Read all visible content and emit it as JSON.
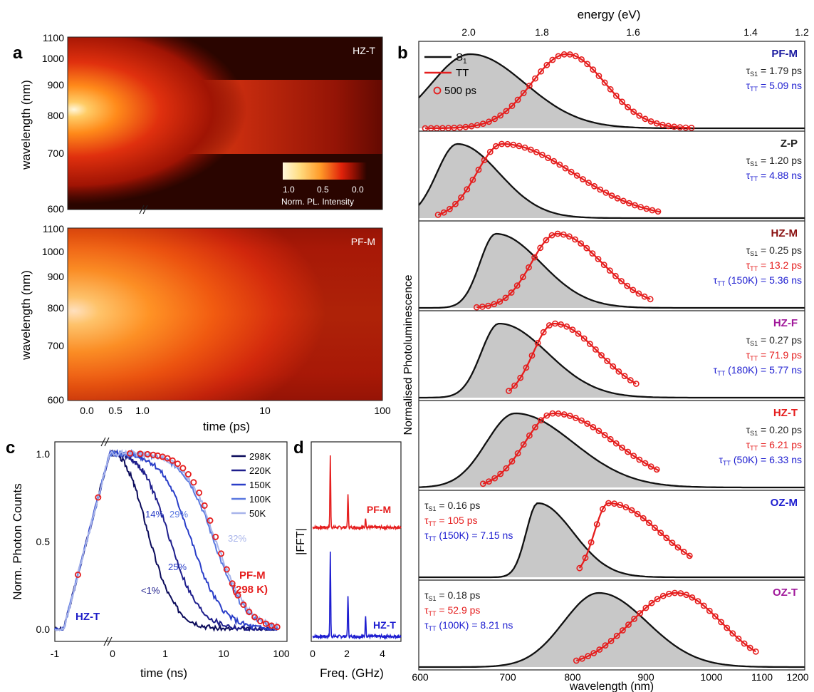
{
  "panels": {
    "a": {
      "label": "a",
      "ylabel": "wavelength (nm)",
      "xlabel": "time (ps)",
      "yticks": [
        "1100",
        "1000",
        "900",
        "800",
        "700",
        "600"
      ],
      "xticks": [
        "0.0",
        "0.5",
        "1.0",
        "10",
        "100"
      ],
      "colorbar": {
        "ticks": [
          "1.0",
          "0.5",
          "0.0"
        ],
        "label": "Norm. PL. Intensity"
      },
      "maps": [
        {
          "name": "HZ-T"
        },
        {
          "name": "PF-M"
        }
      ]
    },
    "b": {
      "label": "b",
      "top_axis_title": "energy (eV)",
      "top_ticks": [
        "2.0",
        "1.8",
        "1.6",
        "1.4",
        "1.2"
      ],
      "xlabel": "wavelength (nm)",
      "xticks": [
        "600",
        "700",
        "800",
        "900",
        "1000",
        "1100",
        "1200"
      ],
      "ylabel": "Normalised Photoluminescence",
      "legend": [
        "S",
        "1",
        "TT",
        "500 ps"
      ],
      "rows": [
        {
          "name": "PF-M",
          "name_color": "#1a1aa0",
          "lines": [
            {
              "t": "τ",
              "s": "S1",
              "v": " = 1.79 ps",
              "c": "#222"
            },
            {
              "t": "τ",
              "s": "TT",
              "v": " = 5.09 ns",
              "c": "#1d1dd0"
            }
          ],
          "text_side": "right",
          "s1_peak": 680,
          "s1_w": [
            60,
            85
          ],
          "tt_peak": 830,
          "tt_w": [
            55,
            60
          ],
          "tt_range": [
            610,
            1025
          ]
        },
        {
          "name": "Z-P",
          "name_color": "#222",
          "lines": [
            {
              "t": "τ",
              "s": "S1",
              "v": " = 1.20 ps",
              "c": "#222"
            },
            {
              "t": "τ",
              "s": "TT",
              "v": " = 4.88 ns",
              "c": "#1d1dd0"
            }
          ],
          "text_side": "right",
          "s1_peak": 660,
          "s1_w": [
            32,
            65
          ],
          "tt_peak": 730,
          "tt_w": [
            40,
            110
          ],
          "tt_range": [
            630,
            975
          ]
        },
        {
          "name": "HZ-M",
          "name_color": "#8a1010",
          "lines": [
            {
              "t": "τ",
              "s": "S1",
              "v": " = 0.25 ps",
              "c": "#222"
            },
            {
              "t": "τ",
              "s": "TT",
              "v": " = 13.2 ps",
              "c": "#e51e1e"
            },
            {
              "t": "τ",
              "s": "TT",
              "v": " (150K) = 5.36 ns",
              "c": "#1d1dd0"
            }
          ],
          "text_side": "right",
          "s1_peak": 720,
          "s1_w": [
            25,
            70
          ],
          "tt_peak": 815,
          "tt_w": [
            40,
            70
          ],
          "tt_range": [
            690,
            960
          ]
        },
        {
          "name": "HZ-F",
          "name_color": "#a0189a",
          "lines": [
            {
              "t": "τ",
              "s": "S1",
              "v": " = 0.27 ps",
              "c": "#222"
            },
            {
              "t": "τ",
              "s": "TT",
              "v": " = 71.9 ps",
              "c": "#e51e1e"
            },
            {
              "t": "τ",
              "s": "TT",
              "v": " (180K) = 5.77 ns",
              "c": "#1d1dd0"
            }
          ],
          "text_side": "right",
          "s1_peak": 725,
          "s1_w": [
            28,
            75
          ],
          "tt_peak": 810,
          "tt_w": [
            32,
            70
          ],
          "tt_range": [
            740,
            940
          ]
        },
        {
          "name": "HZ-T",
          "name_color": "#e51e1e",
          "lines": [
            {
              "t": "τ",
              "s": "S1",
              "v": " = 0.20 ps",
              "c": "#222"
            },
            {
              "t": "τ",
              "s": "TT",
              "v": " = 6.21 ps",
              "c": "#e51e1e"
            },
            {
              "t": "τ",
              "s": "TT",
              "v": " (50K) = 6.33 ns",
              "c": "#1d1dd0"
            }
          ],
          "text_side": "right",
          "s1_peak": 750,
          "s1_w": [
            45,
            90
          ],
          "tt_peak": 810,
          "tt_w": [
            45,
            95
          ],
          "tt_range": [
            700,
            975
          ]
        },
        {
          "name": "OZ-M",
          "name_color": "#1d1dd0",
          "lines": [
            {
              "t": "τ",
              "s": "S1",
              "v": " = 0.16 ps",
              "c": "#222"
            },
            {
              "t": "τ",
              "s": "TT",
              "v": " = 105 ps",
              "c": "#e51e1e"
            },
            {
              "t": "τ",
              "s": "TT",
              "v": " (150K) = 7.15 ns",
              "c": "#1d1dd0"
            }
          ],
          "text_side": "left",
          "s1_peak": 785,
          "s1_w": [
            18,
            55
          ],
          "tt_peak": 895,
          "tt_w": [
            22,
            80
          ],
          "tt_range": [
            850,
            1025
          ]
        },
        {
          "name": "OZ-T",
          "name_color": "#a0189a",
          "lines": [
            {
              "t": "τ",
              "s": "S1",
              "v": " = 0.18 ps",
              "c": "#222"
            },
            {
              "t": "τ",
              "s": "TT",
              "v": " = 52.9 ps",
              "c": "#e51e1e"
            },
            {
              "t": "τ",
              "s": "TT",
              "v": " (100K) = 8.21 ns",
              "c": "#1d1dd0"
            }
          ],
          "text_side": "left",
          "s1_peak": 880,
          "s1_w": [
            55,
            75
          ],
          "tt_peak": 1000,
          "tt_w": [
            70,
            70
          ],
          "tt_range": [
            845,
            1125
          ]
        }
      ]
    },
    "c": {
      "label": "c",
      "ylabel": "Norm. Photon Counts",
      "xlabel": "time (ns)",
      "xticks": [
        "-1",
        "0",
        "1",
        "10",
        "100"
      ],
      "yticks": [
        "0.0",
        "0.5",
        "1.0"
      ],
      "legend": [
        {
          "name": "298K",
          "color": "#0a0a5a"
        },
        {
          "name": "220K",
          "color": "#1e1e8c"
        },
        {
          "name": "150K",
          "color": "#2a3ec8"
        },
        {
          "name": "100K",
          "color": "#5a78e0"
        },
        {
          "name": "50K",
          "color": "#a8b4ea"
        }
      ],
      "annotations": [
        "<1%",
        "25%",
        "14%",
        "29%",
        "32%",
        "HZ-T",
        "PF-M",
        "(298 K)"
      ]
    },
    "d": {
      "label": "d",
      "ylabel": "|FFT|",
      "xlabel": "Freq. (GHz)",
      "xticks": [
        "0",
        "2",
        "4"
      ],
      "labels": [
        "PF-M",
        "HZ-T"
      ]
    }
  },
  "chart_data": [
    {
      "type": "heatmap",
      "title": "HZ-T",
      "xlabel": "time (ps)",
      "ylabel": "wavelength (nm)",
      "x_ticks": [
        0.0,
        0.5,
        1.0,
        10,
        100
      ],
      "ylim": [
        600,
        1100
      ],
      "colorbar": "Norm. PL. Intensity",
      "peak": {
        "time_ps": 0.0,
        "wavelength_nm": 750
      },
      "long_lived_band_nm": [
        770,
        880
      ]
    },
    {
      "type": "heatmap",
      "title": "PF-M",
      "xlabel": "time (ps)",
      "ylabel": "wavelength (nm)",
      "x_ticks": [
        0.0,
        0.5,
        1.0,
        10,
        100
      ],
      "ylim": [
        600,
        1100
      ],
      "peak": {
        "time_ps": 0.0,
        "wavelength_nm": 760
      },
      "long_lived_band_nm": [
        700,
        940
      ]
    },
    {
      "type": "line",
      "xlabel": "wavelength (nm)",
      "ylabel": "Normalised Photoluminescence",
      "xlim": [
        600,
        1200
      ],
      "series_names": [
        "S1",
        "TT",
        "500 ps"
      ],
      "peaks_nm": {
        "PF-M": {
          "S1": 680,
          "TT": 830
        },
        "Z-P": {
          "S1": 660,
          "TT": 730
        },
        "HZ-M": {
          "S1": 720,
          "TT": 815
        },
        "HZ-F": {
          "S1": 725,
          "TT": 810
        },
        "HZ-T": {
          "S1": 750,
          "TT": 810
        },
        "OZ-M": {
          "S1": 785,
          "TT": 895
        },
        "OZ-T": {
          "S1": 880,
          "TT": 1000
        }
      }
    },
    {
      "type": "line",
      "xlabel": "time (ns)",
      "ylabel": "Norm. Photon Counts",
      "ylim": [
        0,
        1.05
      ],
      "series": [
        {
          "name": "298K",
          "half_time_ns": 0.35
        },
        {
          "name": "220K",
          "half_time_ns": 0.9
        },
        {
          "name": "150K",
          "half_time_ns": 2.2
        },
        {
          "name": "100K",
          "half_time_ns": 5.5
        },
        {
          "name": "50K",
          "half_time_ns": 6.0
        }
      ]
    },
    {
      "type": "line",
      "xlabel": "Freq. (GHz)",
      "ylabel": "|FFT|",
      "xlim": [
        0,
        5
      ],
      "peaks_GHz": {
        "PF-M": [
          1.0,
          2.0,
          3.0
        ],
        "HZ-T": [
          1.0,
          2.0,
          3.0
        ]
      }
    }
  ]
}
